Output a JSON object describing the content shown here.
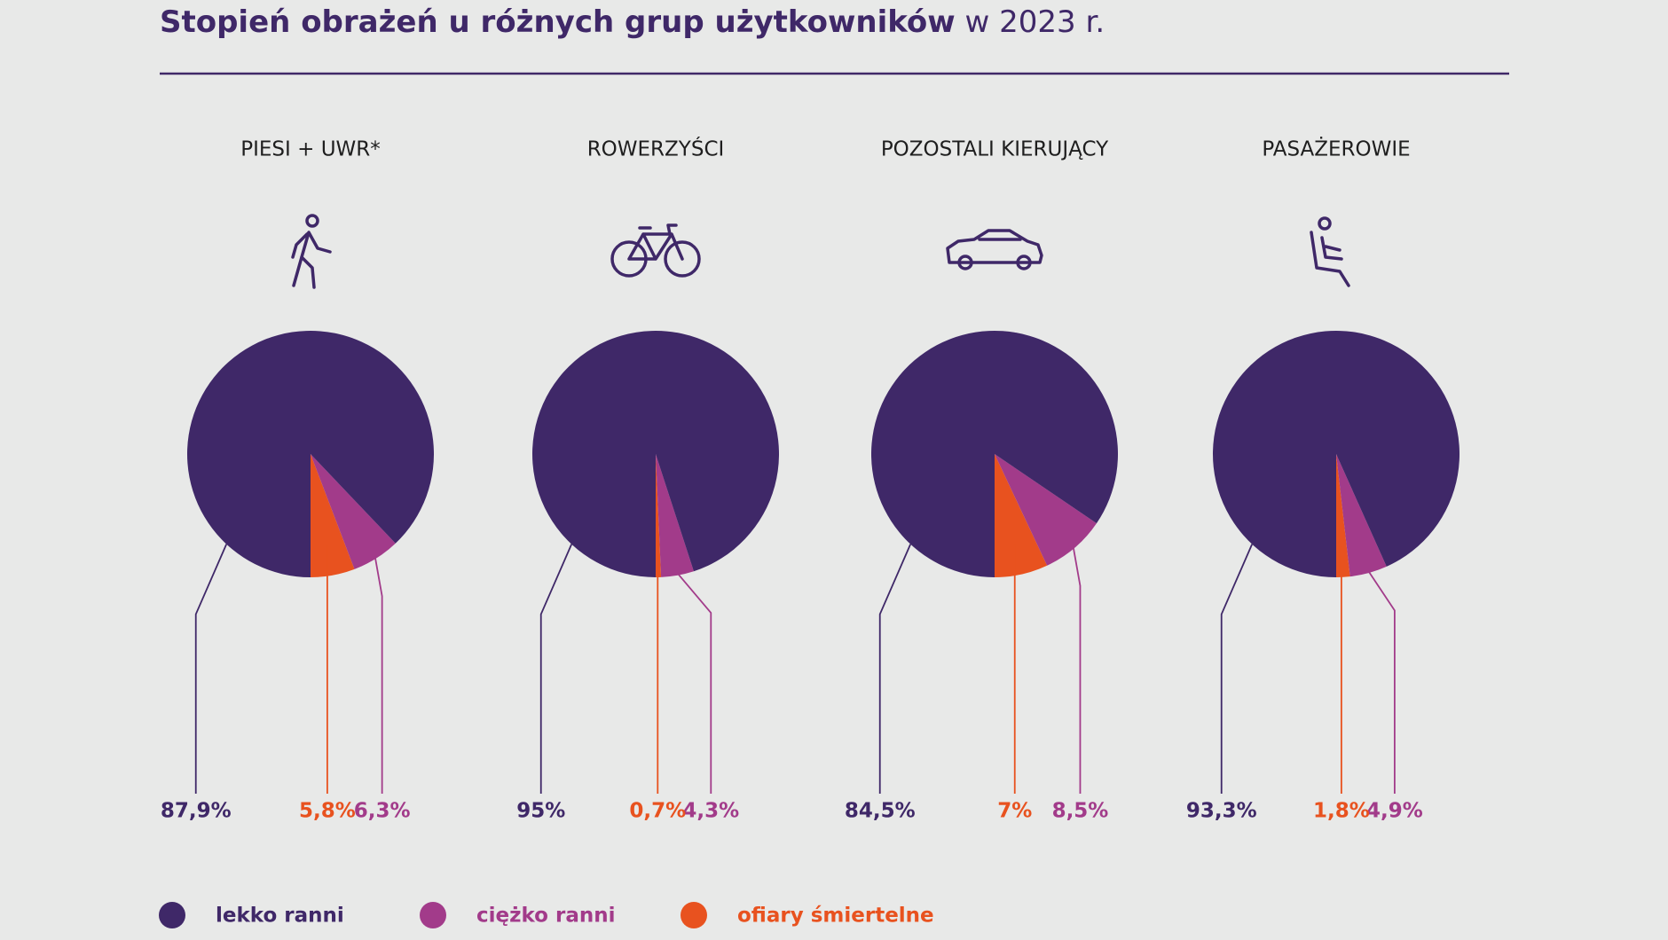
{
  "header": {
    "title": "Stopień obrażeń u różnych grup użytkowników",
    "title_suffix": "w 2023 r."
  },
  "chart_data": [
    {
      "type": "pie",
      "title": "PIESI + UWR*",
      "categories": [
        "lekko ranni",
        "ciężko ranni",
        "ofiary śmiertelne"
      ],
      "values": [
        87.9,
        6.3,
        5.8
      ],
      "value_labels": [
        "87,9%",
        "6,3%",
        "5,8%"
      ],
      "colors": [
        "#3f2868",
        "#a23b8a",
        "#e8521f"
      ]
    },
    {
      "type": "pie",
      "title": "ROWERZYŚCI",
      "categories": [
        "lekko ranni",
        "ciężko ranni",
        "ofiary śmiertelne"
      ],
      "values": [
        95,
        4.3,
        0.7
      ],
      "value_labels": [
        "95%",
        "4,3%",
        "0,7%"
      ],
      "colors": [
        "#3f2868",
        "#a23b8a",
        "#e8521f"
      ]
    },
    {
      "type": "pie",
      "title": "POZOSTALI KIERUJĄCY",
      "categories": [
        "lekko ranni",
        "ciężko ranni",
        "ofiary śmiertelne"
      ],
      "values": [
        84.5,
        8.5,
        7
      ],
      "value_labels": [
        "84,5%",
        "8,5%",
        "7%"
      ],
      "colors": [
        "#3f2868",
        "#a23b8a",
        "#e8521f"
      ]
    },
    {
      "type": "pie",
      "title": "PASAŻEROWIE",
      "categories": [
        "lekko ranni",
        "ciężko ranni",
        "ofiary śmiertelne"
      ],
      "values": [
        93.3,
        4.9,
        1.8
      ],
      "value_labels": [
        "93,3%",
        "4,9%",
        "1,8%"
      ],
      "colors": [
        "#3f2868",
        "#a23b8a",
        "#e8521f"
      ]
    }
  ]
}
